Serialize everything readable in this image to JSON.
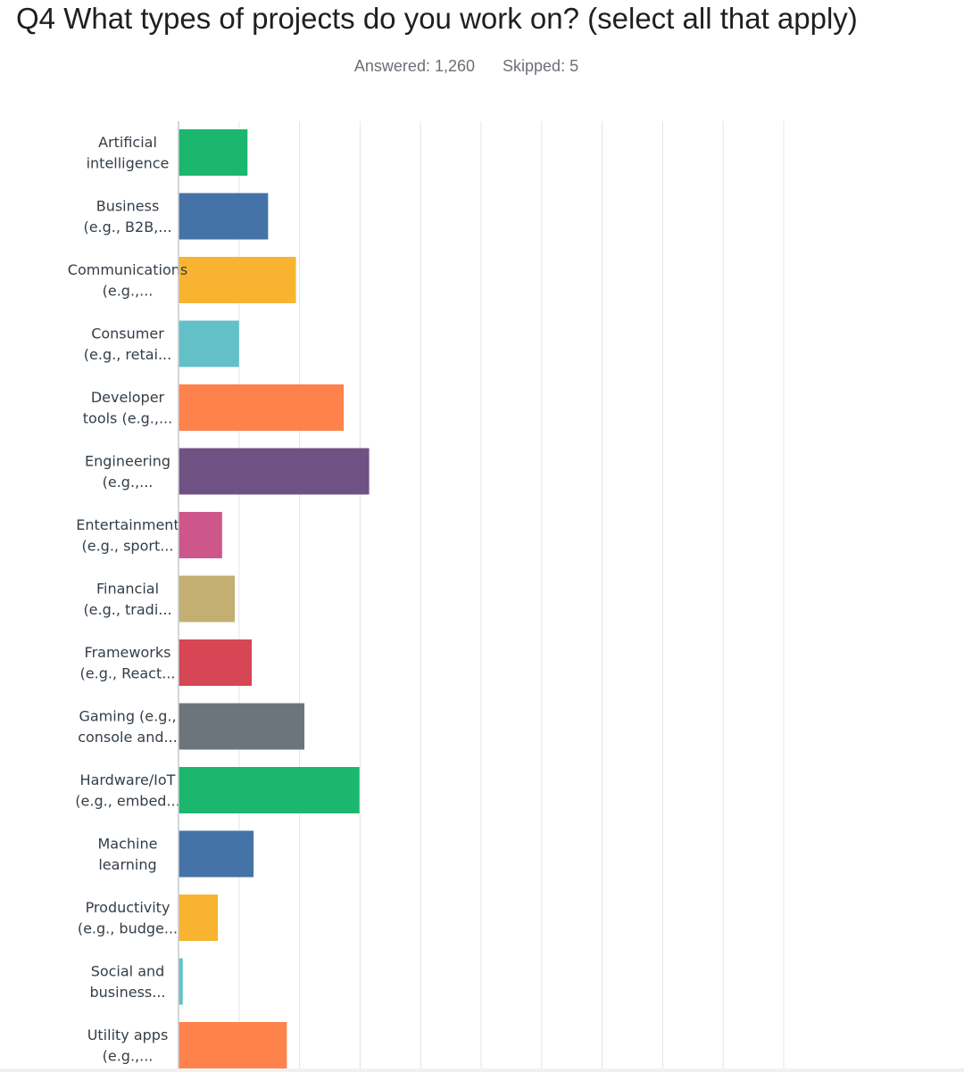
{
  "question": {
    "title": "Q4 What types of projects do you work on? (select all that apply)",
    "answered": "Answered: 1,260",
    "skipped": "Skipped: 5"
  },
  "chart_data": {
    "type": "bar",
    "orientation": "horizontal",
    "title": "",
    "xlabel": "",
    "ylabel": "",
    "xlim": [
      0,
      100
    ],
    "grid": true,
    "categories": [
      [
        "Artificial",
        "intelligence"
      ],
      [
        "Business",
        "(e.g., B2B,..."
      ],
      [
        "Communications",
        "(e.g.,..."
      ],
      [
        "Consumer",
        "(e.g., retai..."
      ],
      [
        "Developer",
        "tools (e.g.,..."
      ],
      [
        "Engineering",
        "(e.g.,..."
      ],
      [
        "Entertainment",
        "(e.g., sport..."
      ],
      [
        "Financial",
        "(e.g., tradi..."
      ],
      [
        "Frameworks",
        "(e.g., React..."
      ],
      [
        "Gaming (e.g.,",
        "console and..."
      ],
      [
        "Hardware/IoT",
        "(e.g., embed..."
      ],
      [
        "Machine",
        "learning"
      ],
      [
        "Productivity",
        "(e.g., budge..."
      ],
      [
        "Social and",
        "business..."
      ],
      [
        "Utility apps",
        "(e.g.,..."
      ]
    ],
    "values": [
      11.4,
      14.8,
      19.4,
      10.0,
      27.3,
      31.5,
      7.2,
      9.3,
      12.1,
      20.8,
      29.9,
      12.4,
      6.5,
      0.7,
      17.9
    ],
    "colors": [
      "#1bb76e",
      "#4572a7",
      "#f8b431",
      "#63c0c8",
      "#fe824c",
      "#6f5283",
      "#cd568a",
      "#c3af72",
      "#d64654",
      "#6d757c",
      "#1bb76e",
      "#4572a7",
      "#f8b431",
      "#63c0c8",
      "#fe824c"
    ]
  }
}
